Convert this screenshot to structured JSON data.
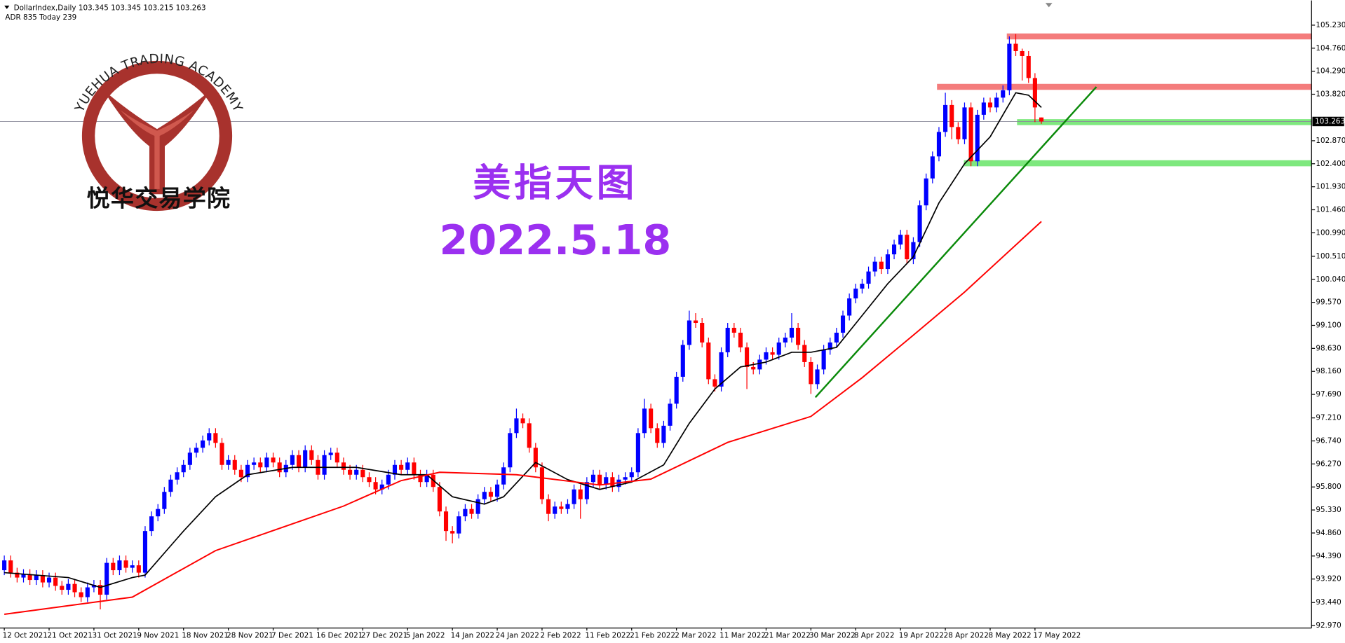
{
  "chart_data": {
    "type": "candlestick",
    "info": [
      "DollarIndex,Daily  103.345 103.345 103.215 103.263",
      "ADR 835  Today 239"
    ],
    "title": "美指天图",
    "subtitle": "2022.5.18",
    "logo_arc": "YUEHUA TRADING ACADEMY",
    "logo_text": "悦华交易学院",
    "up_color": "#0000ff",
    "down_color": "#ff0000",
    "xlim": [
      -0.67,
      204.2
    ],
    "ylim": [
      92.92,
      105.7
    ],
    "yticks": [
      {
        "value": 105.23,
        "label": "105.230"
      },
      {
        "value": 104.76,
        "label": "104.760"
      },
      {
        "value": 104.29,
        "label": "104.290"
      },
      {
        "value": 103.82,
        "label": "103.820"
      },
      {
        "value": 102.87,
        "label": "102.870"
      },
      {
        "value": 102.4,
        "label": "102.400"
      },
      {
        "value": 101.93,
        "label": "101.930"
      },
      {
        "value": 101.46,
        "label": "101.460"
      },
      {
        "value": 100.99,
        "label": "100.990"
      },
      {
        "value": 100.51,
        "label": "100.510"
      },
      {
        "value": 100.04,
        "label": "100.040"
      },
      {
        "value": 99.57,
        "label": "99.570"
      },
      {
        "value": 99.1,
        "label": "99.100"
      },
      {
        "value": 98.63,
        "label": "98.630"
      },
      {
        "value": 98.16,
        "label": "98.160"
      },
      {
        "value": 97.69,
        "label": "97.690"
      },
      {
        "value": 97.21,
        "label": "97.210"
      },
      {
        "value": 96.74,
        "label": "96.740"
      },
      {
        "value": 96.27,
        "label": "96.270"
      },
      {
        "value": 95.8,
        "label": "95.800"
      },
      {
        "value": 95.33,
        "label": "95.330"
      },
      {
        "value": 94.86,
        "label": "94.860"
      },
      {
        "value": 94.39,
        "label": "94.390"
      },
      {
        "value": 93.92,
        "label": "93.920"
      },
      {
        "value": 93.44,
        "label": "93.440"
      },
      {
        "value": 92.97,
        "label": "92.970"
      }
    ],
    "last_price": 103.263,
    "categories": [
      "12 Oct 2021",
      null,
      null,
      null,
      null,
      null,
      null,
      "21 Oct 2021",
      null,
      null,
      null,
      null,
      null,
      null,
      "31 Oct 2021",
      null,
      null,
      null,
      null,
      null,
      null,
      "9 Nov 2021",
      null,
      null,
      null,
      null,
      null,
      null,
      "18 Nov 2021",
      null,
      null,
      null,
      null,
      null,
      null,
      "28 Nov 2021",
      null,
      null,
      null,
      null,
      null,
      null,
      "7 Dec 2021",
      null,
      null,
      null,
      null,
      null,
      null,
      "16 Dec 2021",
      null,
      null,
      null,
      null,
      null,
      null,
      "27 Dec 2021",
      null,
      null,
      null,
      null,
      null,
      null,
      "5 Jan 2022",
      null,
      null,
      null,
      null,
      null,
      null,
      "14 Jan 2022",
      null,
      null,
      null,
      null,
      null,
      null,
      "24 Jan 2022",
      null,
      null,
      null,
      null,
      null,
      null,
      "2 Feb 2022",
      null,
      null,
      null,
      null,
      null,
      null,
      "11 Feb 2022",
      null,
      null,
      null,
      null,
      null,
      null,
      "21 Feb 2022",
      null,
      null,
      null,
      null,
      null,
      null,
      "2 Mar 2022",
      null,
      null,
      null,
      null,
      null,
      null,
      "11 Mar 2022",
      null,
      null,
      null,
      null,
      null,
      null,
      "21 Mar 2022",
      null,
      null,
      null,
      null,
      null,
      null,
      "30 Mar 2022",
      null,
      null,
      null,
      null,
      null,
      null,
      "8 Apr 2022",
      null,
      null,
      null,
      null,
      null,
      null,
      "19 Apr 2022",
      null,
      null,
      null,
      null,
      null,
      null,
      "28 Apr 2022",
      null,
      null,
      null,
      null,
      null,
      null,
      "8 May 2022",
      null,
      null,
      null,
      null,
      null,
      null,
      "17 May 2022",
      null
    ],
    "open": [
      94.1,
      94.3,
      94.05,
      93.95,
      94.02,
      93.9,
      94.0,
      93.85,
      93.95,
      93.78,
      93.7,
      93.82,
      93.65,
      93.55,
      93.75,
      93.8,
      93.6,
      94.25,
      94.1,
      94.3,
      94.15,
      94.2,
      94.05,
      94.9,
      95.2,
      95.35,
      95.7,
      95.95,
      96.1,
      96.25,
      96.5,
      96.6,
      96.75,
      96.9,
      96.7,
      96.25,
      96.35,
      96.15,
      96.0,
      96.25,
      96.3,
      96.2,
      96.4,
      96.3,
      96.1,
      96.25,
      96.45,
      96.2,
      96.55,
      96.35,
      96.05,
      96.45,
      96.5,
      96.3,
      96.15,
      96.05,
      96.15,
      96.0,
      95.9,
      95.75,
      95.85,
      96.05,
      96.25,
      96.15,
      96.3,
      96.05,
      95.9,
      96.05,
      95.8,
      95.3,
      94.9,
      94.85,
      95.2,
      95.35,
      95.25,
      95.55,
      95.7,
      95.6,
      95.85,
      96.2,
      96.9,
      97.2,
      97.1,
      96.6,
      96.2,
      95.55,
      95.25,
      95.4,
      95.35,
      95.45,
      95.75,
      95.55,
      95.9,
      96.05,
      95.85,
      96.0,
      95.8,
      95.95,
      96.0,
      96.1,
      96.9,
      97.4,
      97.0,
      96.7,
      97.05,
      97.5,
      98.05,
      98.7,
      99.2,
      99.15,
      98.75,
      98.0,
      97.85,
      98.55,
      99.05,
      98.95,
      98.65,
      98.25,
      98.2,
      98.4,
      98.55,
      98.5,
      98.75,
      98.85,
      99.05,
      98.7,
      98.35,
      97.9,
      98.2,
      98.6,
      98.75,
      98.95,
      99.3,
      99.65,
      99.85,
      99.95,
      100.2,
      100.4,
      100.25,
      100.55,
      100.75,
      100.95,
      100.45,
      100.8,
      101.55,
      102.1,
      102.55,
      103.05,
      103.6,
      103.15,
      102.9,
      103.55,
      102.45,
      103.4,
      103.65,
      103.55,
      103.75,
      103.9,
      104.85,
      104.7,
      104.6,
      104.15,
      103.345
    ],
    "high": [
      94.4,
      94.4,
      94.15,
      94.12,
      94.12,
      94.1,
      94.1,
      94.05,
      94.05,
      93.88,
      93.92,
      93.92,
      93.75,
      93.85,
      93.9,
      93.9,
      94.35,
      94.35,
      94.4,
      94.4,
      94.3,
      94.3,
      95.0,
      95.3,
      95.45,
      95.8,
      96.05,
      96.2,
      96.35,
      96.6,
      96.7,
      96.85,
      97.0,
      97.0,
      96.8,
      96.45,
      96.45,
      96.25,
      96.35,
      96.4,
      96.4,
      96.5,
      96.5,
      96.4,
      96.35,
      96.55,
      96.55,
      96.65,
      96.65,
      96.45,
      96.55,
      96.6,
      96.6,
      96.4,
      96.25,
      96.25,
      96.25,
      96.1,
      96.0,
      95.95,
      96.15,
      96.35,
      96.35,
      96.4,
      96.4,
      96.15,
      96.15,
      96.15,
      95.9,
      95.4,
      95.0,
      95.3,
      95.45,
      95.45,
      95.65,
      95.8,
      95.8,
      95.95,
      96.3,
      97.0,
      97.4,
      97.3,
      97.2,
      96.7,
      96.3,
      95.65,
      95.5,
      95.5,
      95.55,
      95.85,
      95.85,
      96.0,
      96.15,
      96.15,
      96.1,
      96.1,
      96.05,
      96.1,
      96.2,
      97.0,
      97.6,
      97.5,
      97.1,
      97.15,
      97.6,
      98.15,
      98.8,
      99.4,
      99.35,
      99.25,
      98.85,
      98.1,
      98.65,
      99.15,
      99.15,
      99.05,
      98.75,
      98.35,
      98.5,
      98.65,
      98.65,
      98.85,
      98.95,
      99.35,
      99.15,
      98.8,
      98.45,
      98.3,
      98.7,
      98.85,
      99.05,
      99.4,
      99.75,
      99.95,
      100.05,
      100.3,
      100.5,
      100.5,
      100.65,
      100.85,
      101.05,
      101.05,
      100.9,
      101.65,
      102.2,
      102.65,
      103.15,
      103.85,
      103.7,
      103.25,
      103.65,
      103.65,
      103.5,
      103.75,
      103.75,
      103.85,
      104.0,
      105.0,
      105.05,
      104.75,
      104.7,
      104.25,
      103.345
    ],
    "low": [
      94.0,
      93.95,
      93.85,
      93.85,
      93.8,
      93.8,
      93.75,
      93.75,
      93.68,
      93.6,
      93.6,
      93.55,
      93.45,
      93.45,
      93.65,
      93.3,
      93.5,
      94.0,
      94.0,
      94.05,
      94.05,
      93.95,
      93.95,
      94.8,
      95.1,
      95.25,
      95.6,
      95.85,
      96.0,
      96.15,
      96.4,
      96.5,
      96.65,
      96.6,
      96.15,
      96.15,
      96.05,
      95.9,
      95.9,
      96.15,
      96.1,
      96.1,
      96.2,
      96.0,
      96.0,
      96.15,
      96.1,
      96.1,
      96.25,
      95.95,
      95.95,
      96.35,
      96.2,
      96.05,
      95.95,
      95.95,
      95.9,
      95.8,
      95.65,
      95.65,
      95.75,
      95.95,
      96.05,
      96.05,
      95.95,
      95.8,
      95.8,
      95.7,
      95.2,
      94.7,
      94.65,
      94.75,
      95.1,
      95.15,
      95.15,
      95.45,
      95.5,
      95.5,
      95.75,
      96.1,
      96.8,
      97.0,
      96.5,
      96.1,
      95.45,
      95.1,
      95.15,
      95.25,
      95.25,
      95.35,
      95.15,
      95.45,
      95.8,
      95.75,
      95.75,
      95.7,
      95.7,
      95.85,
      95.9,
      96.0,
      96.8,
      96.9,
      96.6,
      96.6,
      96.95,
      97.4,
      97.95,
      98.6,
      99.05,
      98.65,
      97.9,
      97.75,
      97.75,
      98.45,
      98.85,
      98.55,
      97.8,
      98.1,
      98.1,
      98.3,
      98.4,
      98.4,
      98.65,
      98.75,
      98.6,
      98.25,
      97.7,
      97.8,
      98.1,
      98.5,
      98.65,
      98.85,
      99.2,
      99.55,
      99.75,
      99.85,
      100.1,
      100.15,
      100.15,
      100.45,
      100.65,
      100.35,
      100.35,
      100.7,
      101.45,
      102.0,
      102.45,
      102.95,
      102.9,
      102.8,
      102.8,
      102.35,
      102.35,
      103.3,
      103.45,
      103.45,
      103.65,
      103.8,
      104.6,
      104.1,
      104.05,
      103.25,
      103.215
    ],
    "close": [
      94.3,
      94.05,
      93.95,
      94.02,
      93.9,
      94.0,
      93.85,
      93.95,
      93.78,
      93.7,
      93.82,
      93.65,
      93.55,
      93.75,
      93.8,
      93.6,
      94.25,
      94.1,
      94.3,
      94.15,
      94.2,
      94.05,
      94.9,
      95.2,
      95.35,
      95.7,
      95.95,
      96.1,
      96.25,
      96.5,
      96.6,
      96.75,
      96.9,
      96.7,
      96.25,
      96.35,
      96.15,
      96.0,
      96.25,
      96.3,
      96.2,
      96.4,
      96.3,
      96.1,
      96.25,
      96.45,
      96.2,
      96.55,
      96.35,
      96.05,
      96.45,
      96.5,
      96.3,
      96.15,
      96.05,
      96.15,
      96.0,
      95.9,
      95.75,
      95.85,
      96.05,
      96.25,
      96.15,
      96.3,
      96.05,
      95.9,
      96.05,
      95.8,
      95.3,
      94.9,
      94.85,
      95.2,
      95.35,
      95.25,
      95.55,
      95.7,
      95.6,
      95.85,
      96.2,
      96.9,
      97.2,
      97.1,
      96.6,
      96.2,
      95.55,
      95.25,
      95.4,
      95.35,
      95.45,
      95.75,
      95.55,
      95.9,
      96.05,
      95.85,
      96.0,
      95.8,
      95.95,
      96.0,
      96.1,
      96.9,
      97.4,
      97.0,
      96.7,
      97.05,
      97.5,
      98.05,
      98.7,
      99.2,
      99.15,
      98.75,
      98.0,
      97.85,
      98.55,
      99.05,
      98.95,
      98.65,
      98.25,
      98.2,
      98.4,
      98.55,
      98.5,
      98.75,
      98.85,
      99.05,
      98.7,
      98.35,
      97.9,
      98.2,
      98.6,
      98.75,
      98.95,
      99.3,
      99.65,
      99.85,
      99.95,
      100.2,
      100.4,
      100.25,
      100.55,
      100.75,
      100.95,
      100.45,
      100.8,
      101.55,
      102.1,
      102.55,
      103.05,
      103.6,
      103.15,
      102.9,
      103.55,
      102.45,
      103.4,
      103.65,
      103.55,
      103.75,
      103.9,
      104.85,
      104.7,
      104.6,
      104.15,
      103.55,
      103.263
    ],
    "lines": [
      {
        "color": "#000000",
        "width": 1.4,
        "x": [
          0,
          10,
          15,
          20,
          22,
          28,
          33,
          38,
          45,
          55,
          62,
          66,
          70,
          75,
          78,
          83,
          88,
          93,
          98,
          103,
          107,
          111,
          115,
          119,
          123,
          126,
          130,
          134,
          138,
          142,
          146,
          150,
          154,
          158,
          160,
          162
        ],
        "values": [
          94.05,
          93.95,
          93.75,
          93.95,
          94.0,
          94.9,
          95.6,
          96.05,
          96.2,
          96.2,
          96.05,
          96.05,
          95.6,
          95.45,
          95.6,
          96.3,
          95.95,
          95.75,
          95.9,
          96.25,
          97.1,
          97.8,
          98.25,
          98.35,
          98.55,
          98.55,
          98.65,
          99.3,
          99.95,
          100.5,
          101.6,
          102.4,
          102.95,
          103.85,
          103.8,
          103.55
        ]
      },
      {
        "color": "#ff0000",
        "width": 1.6,
        "x": [
          0,
          20,
          33,
          53,
          62,
          68,
          80,
          93,
          101,
          113,
          126,
          134,
          142,
          150,
          162
        ],
        "values": [
          93.2,
          93.55,
          94.5,
          95.41,
          95.93,
          96.1,
          96.05,
          95.84,
          95.96,
          96.71,
          97.24,
          98.03,
          98.9,
          99.78,
          101.22
        ]
      }
    ],
    "levels": [
      {
        "value": 105.0,
        "from": 156.6,
        "color": "#f47c7c"
      },
      {
        "value": 103.97,
        "from": 145.7,
        "color": "#f47c7c"
      },
      {
        "value": 103.25,
        "from": 158.2,
        "color": "#7ee87e"
      },
      {
        "value": 102.41,
        "from": 149.9,
        "color": "#7ee87e"
      }
    ],
    "trendline": {
      "color": "#0a8a0a",
      "x": [
        126.7,
        170.6
      ],
      "values": [
        97.63,
        103.97
      ]
    }
  }
}
